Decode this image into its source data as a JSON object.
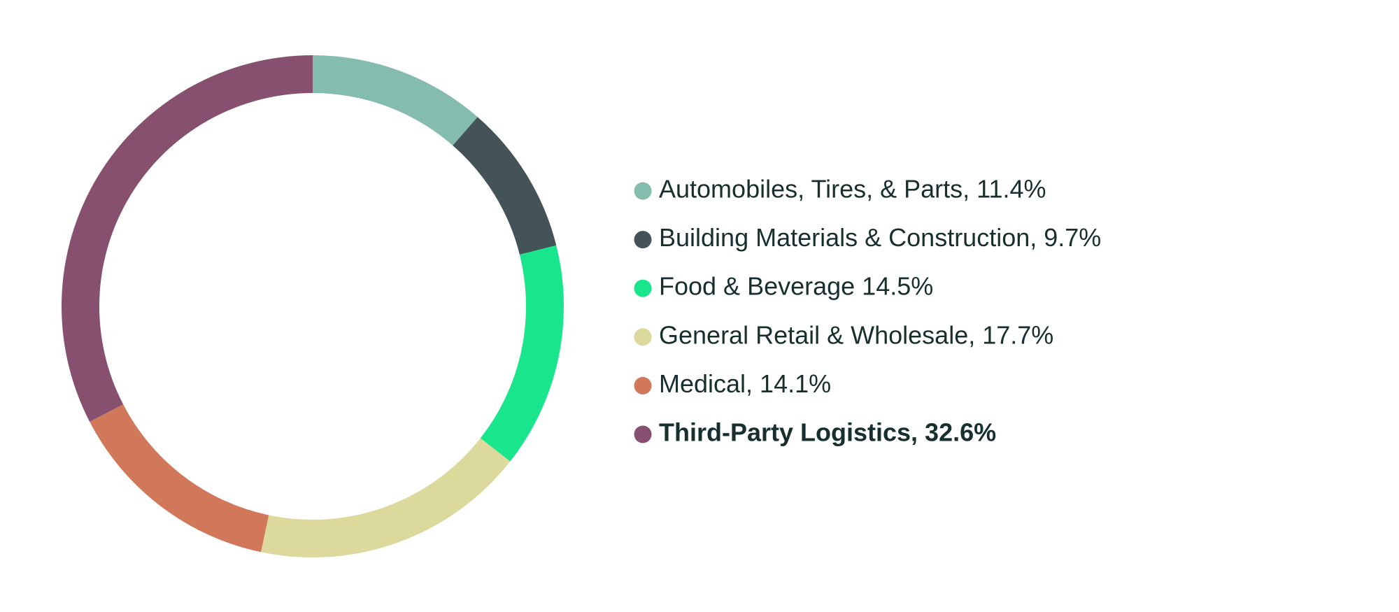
{
  "chart_data": {
    "type": "donut",
    "categories": [
      "Automobiles, Tires, & Parts, 11.4%",
      "Building Materials & Construction, 9.7%",
      "Food & Beverage 14.5%",
      "General Retail & Wholesale, 17.7%",
      "Medical, 14.1%",
      "Third-Party Logistics, 32.6%"
    ],
    "values": [
      11.4,
      9.7,
      14.5,
      17.7,
      14.1,
      32.6
    ],
    "colors": [
      "#84bcae",
      "#435357",
      "#19e68c",
      "#dcd99c",
      "#d2785a",
      "#87506f"
    ],
    "bold": [
      false,
      false,
      false,
      false,
      false,
      true
    ],
    "legend": "right"
  }
}
